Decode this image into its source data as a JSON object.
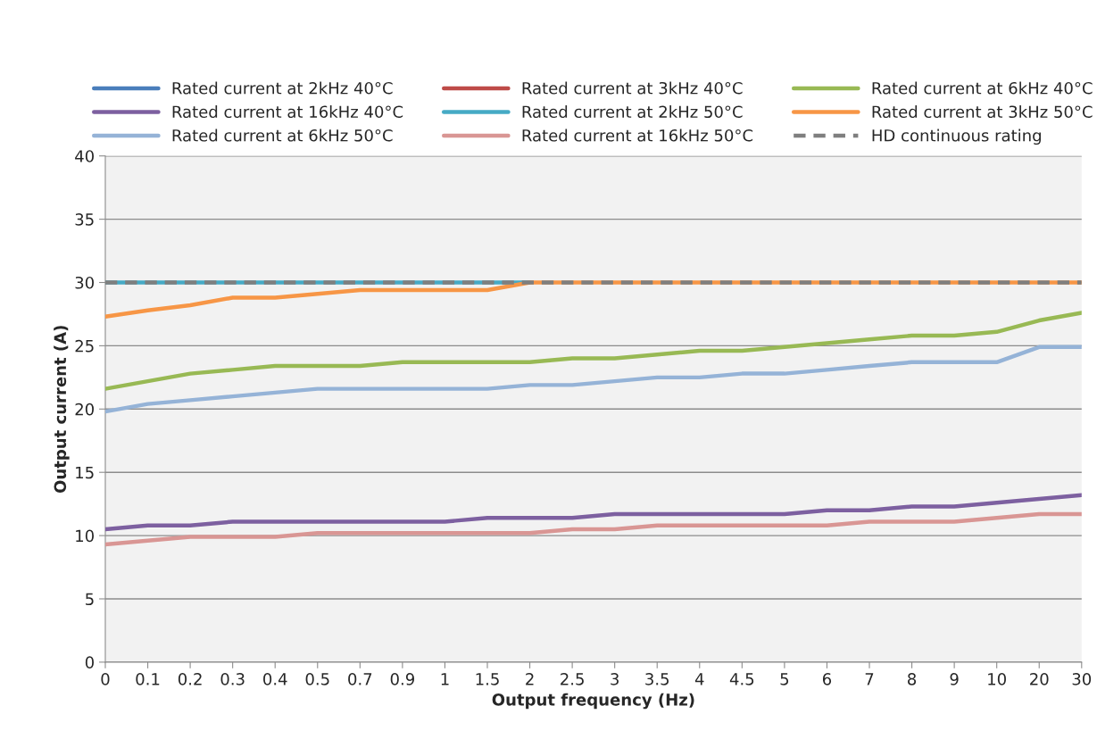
{
  "chart_data": {
    "type": "line",
    "xlabel": "Output frequency (Hz)",
    "ylabel": "Output current (A)",
    "categories": [
      "0",
      "0.1",
      "0.2",
      "0.3",
      "0.4",
      "0.5",
      "0.7",
      "0.9",
      "1",
      "1.5",
      "2",
      "2.5",
      "3",
      "3.5",
      "4",
      "4.5",
      "5",
      "6",
      "7",
      "8",
      "9",
      "10",
      "20",
      "30"
    ],
    "series": [
      {
        "name": "Rated current at 2kHz 40°C",
        "color": "#4a7ebb",
        "values": [
          null,
          null,
          null,
          null,
          null,
          null,
          null,
          null,
          null,
          null,
          null,
          null,
          null,
          null,
          null,
          null,
          null,
          null,
          null,
          null,
          null,
          null,
          null,
          null
        ]
      },
      {
        "name": "Rated current at 3kHz 40°C",
        "color": "#be4b48",
        "values": [
          null,
          null,
          null,
          null,
          null,
          null,
          null,
          null,
          null,
          null,
          null,
          null,
          null,
          null,
          null,
          null,
          null,
          null,
          null,
          null,
          null,
          null,
          null,
          null
        ]
      },
      {
        "name": "Rated current at 6kHz 40°C",
        "color": "#98b954",
        "values": [
          21.6,
          22.2,
          22.8,
          23.1,
          23.4,
          23.4,
          23.4,
          23.7,
          23.7,
          23.7,
          23.7,
          24.0,
          24.0,
          24.3,
          24.6,
          24.6,
          24.9,
          25.2,
          25.5,
          25.8,
          25.8,
          26.1,
          27.0,
          27.6
        ]
      },
      {
        "name": "Rated current at 16kHz 40°C",
        "color": "#7d60a0",
        "values": [
          10.5,
          10.8,
          10.8,
          11.1,
          11.1,
          11.1,
          11.1,
          11.1,
          11.1,
          11.4,
          11.4,
          11.4,
          11.7,
          11.7,
          11.7,
          11.7,
          11.7,
          12.0,
          12.0,
          12.3,
          12.3,
          12.6,
          12.9,
          13.2
        ]
      },
      {
        "name": "Rated current at 2kHz 50°C",
        "color": "#46aac5",
        "values": [
          30,
          30,
          30,
          30,
          30,
          30,
          30,
          30,
          30,
          30,
          30,
          null,
          null,
          null,
          null,
          null,
          null,
          null,
          null,
          null,
          null,
          null,
          null,
          null
        ]
      },
      {
        "name": "Rated current at 3kHz 50°C",
        "color": "#f79646",
        "values": [
          27.3,
          27.8,
          28.2,
          28.8,
          28.8,
          29.1,
          29.4,
          29.4,
          29.4,
          29.4,
          30,
          30,
          30,
          30,
          30,
          30,
          30,
          30,
          30,
          30,
          30,
          30,
          30,
          30
        ]
      },
      {
        "name": "Rated current at 6kHz 50°C",
        "color": "#95b3d7",
        "values": [
          19.8,
          20.4,
          20.7,
          21.0,
          21.3,
          21.6,
          21.6,
          21.6,
          21.6,
          21.6,
          21.9,
          21.9,
          22.2,
          22.5,
          22.5,
          22.8,
          22.8,
          23.1,
          23.4,
          23.7,
          23.7,
          23.7,
          24.9,
          24.9
        ]
      },
      {
        "name": "Rated current at 16kHz 50°C",
        "color": "#d99694",
        "values": [
          9.3,
          9.6,
          9.9,
          9.9,
          9.9,
          10.2,
          10.2,
          10.2,
          10.2,
          10.2,
          10.2,
          10.5,
          10.5,
          10.8,
          10.8,
          10.8,
          10.8,
          10.8,
          11.1,
          11.1,
          11.1,
          11.4,
          11.7,
          11.7
        ]
      },
      {
        "name": "HD continuous rating",
        "color": "#7f7f7f",
        "line_style": "dashed",
        "values": [
          30,
          30,
          30,
          30,
          30,
          30,
          30,
          30,
          30,
          30,
          30,
          30,
          30,
          30,
          30,
          30,
          30,
          30,
          30,
          30,
          30,
          30,
          30,
          30
        ]
      }
    ],
    "ylim": [
      0,
      40
    ],
    "yticks": [
      0,
      5,
      10,
      15,
      20,
      25,
      30,
      35,
      40
    ],
    "grid": "y",
    "legend": "top",
    "marker": "none"
  }
}
